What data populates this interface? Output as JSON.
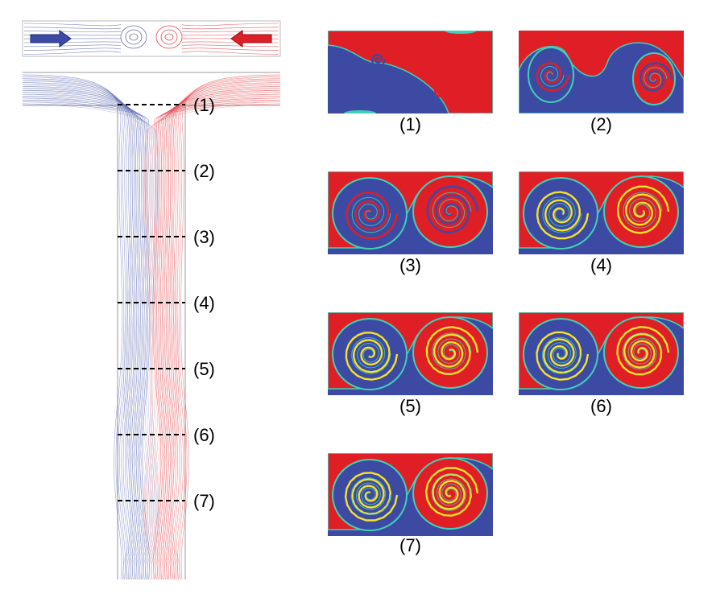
{
  "colors": {
    "stream_a": "#3c4aa3",
    "stream_b": "#e01e26",
    "mix_interface": "#f5e22a",
    "mix_edge": "#3fd1b7",
    "frame": "#9a9a9a"
  },
  "icons": {
    "inlet_left": "arrow-right-icon",
    "inlet_right": "arrow-left-icon"
  },
  "sections": [
    {
      "label": "(1)",
      "stage": 1
    },
    {
      "label": "(2)",
      "stage": 2
    },
    {
      "label": "(3)",
      "stage": 3
    },
    {
      "label": "(4)",
      "stage": 4
    },
    {
      "label": "(5)",
      "stage": 5
    },
    {
      "label": "(6)",
      "stage": 6
    },
    {
      "label": "(7)",
      "stage": 7
    }
  ]
}
